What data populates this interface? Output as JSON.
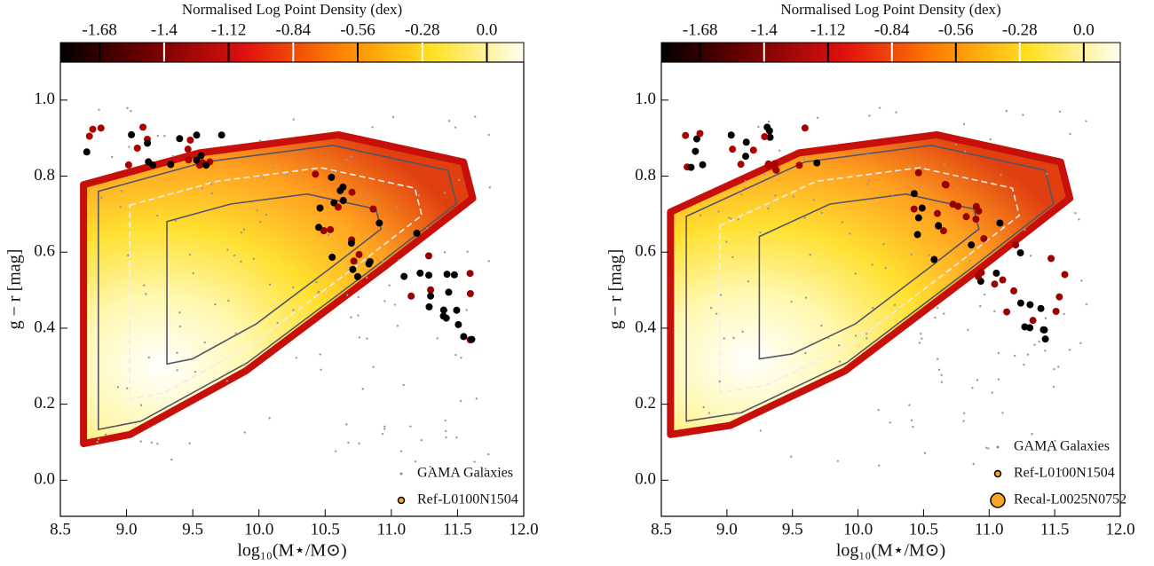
{
  "chart_data": [
    {
      "type": "density",
      "xlabel": "log₁₀(M⋆/M⊙)",
      "ylabel": "g − r [mag]",
      "xlim": [
        8.5,
        12.0
      ],
      "ylim": [
        -0.095,
        1.1
      ],
      "xticks": [
        8.5,
        {
          "value": 9,
          "label": "9.0"
        },
        9.5,
        {
          "value": 10,
          "label": "10.0"
        },
        10.5,
        {
          "value": 11,
          "label": "11.0"
        },
        11.5,
        {
          "value": 12,
          "label": "12.0"
        }
      ],
      "yticks": [
        {
          "value": 0,
          "label": "0.0"
        },
        0.2,
        0.4,
        0.6,
        0.8,
        {
          "value": 1,
          "label": "1.0"
        }
      ],
      "colorbar": {
        "label": "Normalised Log Point Density (dex)",
        "lim": [
          -1.85,
          0.16
        ],
        "ticks": [
          -1.68,
          -1.4,
          -1.12,
          -0.84,
          -0.56,
          -0.28,
          {
            "value": 0,
            "label": "0.0"
          }
        ]
      },
      "legend": [
        {
          "name": "GAMA Galaxies",
          "color": "#888888"
        },
        {
          "name": "Ref-L0100N1504",
          "color": "#f5a623"
        }
      ]
    },
    {
      "type": "density",
      "xlabel": "log₁₀(M⋆/M⊙)",
      "ylabel": "g − r [mag]",
      "xlim": [
        8.5,
        12.0
      ],
      "ylim": [
        -0.095,
        1.1
      ],
      "xticks": [
        8.5,
        {
          "value": 9,
          "label": "9.0"
        },
        9.5,
        {
          "value": 10,
          "label": "10.0"
        },
        10.5,
        {
          "value": 11,
          "label": "11.0"
        },
        11.5,
        {
          "value": 12,
          "label": "12.0"
        }
      ],
      "yticks": [
        {
          "value": 0,
          "label": "0.0"
        },
        0.2,
        0.4,
        0.6,
        0.8,
        {
          "value": 1,
          "label": "1.0"
        }
      ],
      "colorbar": {
        "label": "Normalised Log Point Density (dex)",
        "lim": [
          -1.85,
          0.16
        ],
        "ticks": [
          -1.68,
          -1.4,
          -1.12,
          -0.84,
          -0.56,
          -0.28,
          {
            "value": 0,
            "label": "0.0"
          }
        ]
      },
      "legend": [
        {
          "name": "GAMA Galaxies",
          "color": "#888888"
        },
        {
          "name": "Ref-L0100N1504",
          "color": "#f5a623"
        },
        {
          "name": "Recal-L0025N0752",
          "color": "#f5a623"
        }
      ]
    }
  ]
}
